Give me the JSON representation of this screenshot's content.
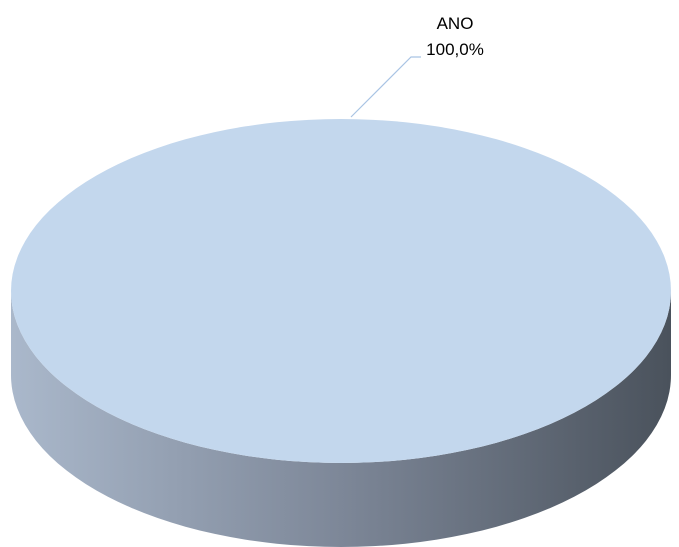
{
  "chart_data": {
    "type": "pie",
    "style": "3d",
    "title": "",
    "slices": [
      {
        "label": "ANO",
        "value": 100.0,
        "value_label": "100,0%",
        "color": "#c3d7ed"
      }
    ],
    "legend": "none",
    "data_labels": "outside-with-leader-line"
  },
  "colors": {
    "top": "#c3d7ed",
    "side_light": "#aab8cb",
    "side_mid": "#7d8798",
    "side_dark": "#4a525c",
    "leader_line": "#a9c4e4"
  }
}
